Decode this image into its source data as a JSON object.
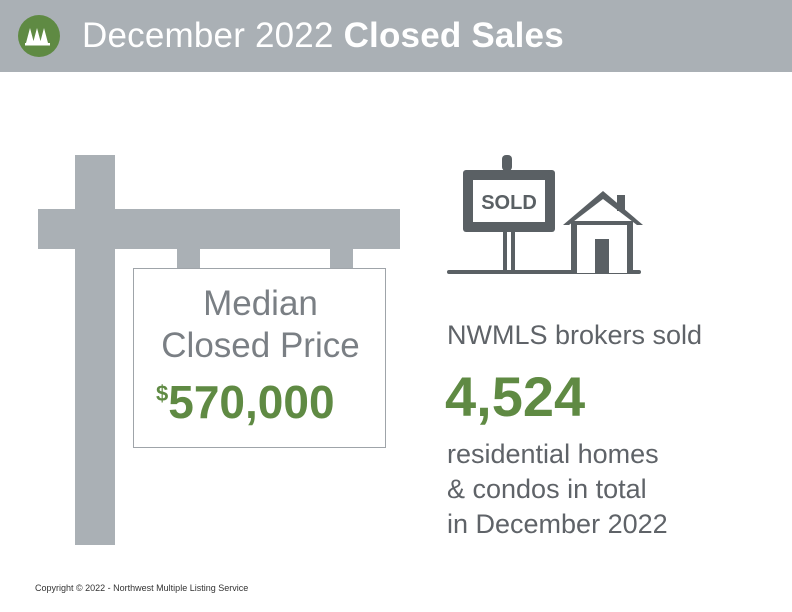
{
  "header": {
    "title_prefix": "December 2022",
    "title_bold": "Closed Sales",
    "logo_icon": "nwmls-trees-icon"
  },
  "price_sign": {
    "label_line1": "Median",
    "label_line2": "Closed Price",
    "currency_symbol": "$",
    "value": "570,000"
  },
  "sold_sign": {
    "text": "SOLD",
    "icon": "sold-sign-house-icon"
  },
  "stats": {
    "intro": "NWMLS brokers sold",
    "count": "4,524",
    "desc_line1": "residential homes",
    "desc_line2": "& condos in total",
    "desc_line3": "in December 2022"
  },
  "footer": {
    "copyright": "Copyright © 2022 - Northwest Multiple Listing Service"
  },
  "colors": {
    "header_bg": "#aab0b5",
    "accent_green": "#5f8a43",
    "post_gray": "#aab0b5",
    "sign_dark": "#5a6064"
  }
}
